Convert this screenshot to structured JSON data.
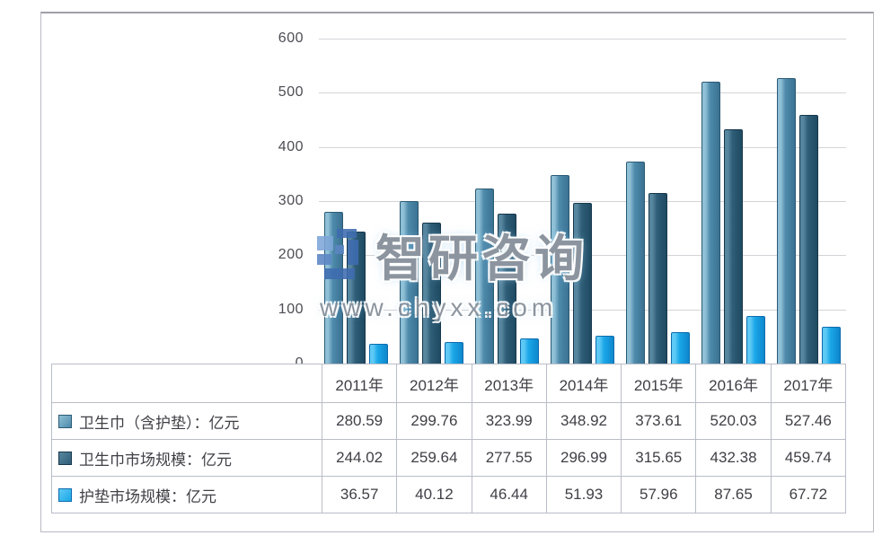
{
  "watermark": {
    "brand": "智研咨询",
    "url": "www.chyxx.com",
    "logo_colors": {
      "light": "#7ea6d8",
      "mid": "#5c86c4",
      "dark": "#3e6cb0"
    }
  },
  "axes": {
    "tick_labels": [
      "600",
      "500",
      "400",
      "300",
      "200",
      "100",
      "0"
    ]
  },
  "chart_data": {
    "type": "bar",
    "title": "",
    "categories": [
      "2011年",
      "2012年",
      "2013年",
      "2014年",
      "2015年",
      "2016年",
      "2017年"
    ],
    "series": [
      {
        "name": "卫生巾（含护垫）：亿元",
        "values": [
          280.59,
          299.76,
          323.99,
          348.92,
          373.61,
          520.03,
          527.46
        ],
        "colors": {
          "hi": "#8fc0d6",
          "main": "#4e8aab",
          "dark": "#3a7292",
          "border": "#2b5a74"
        }
      },
      {
        "name": "卫生巾市场规模：亿元",
        "values": [
          244.02,
          259.64,
          277.55,
          296.99,
          315.65,
          432.38,
          459.74
        ],
        "colors": {
          "hi": "#57869f",
          "main": "#2f5d77",
          "dark": "#1f4a62",
          "border": "#17384c"
        }
      },
      {
        "name": "护垫市场规模：亿元",
        "values": [
          36.57,
          40.12,
          46.44,
          51.93,
          57.96,
          87.65,
          67.72
        ],
        "colors": {
          "hi": "#5ec9f4",
          "main": "#1aa7e8",
          "dark": "#0e86cc",
          "border": "#0d6cae"
        }
      }
    ],
    "ylim": [
      0,
      600
    ],
    "yticks": [
      600,
      500,
      400,
      300,
      200,
      100,
      0
    ],
    "grid": true,
    "legend_position": "table-left",
    "value_format": "2-decimals"
  }
}
